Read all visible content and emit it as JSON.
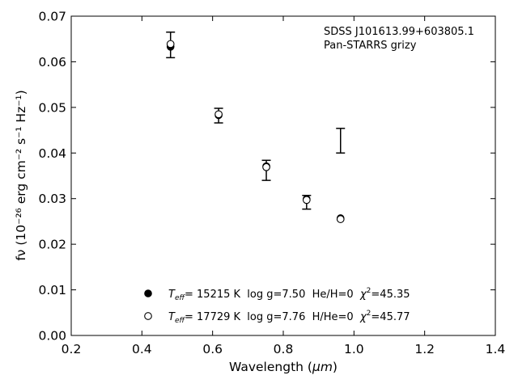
{
  "chart_data": {
    "type": "scatter",
    "xlabel_prefix": "Wavelength (",
    "xlabel_unit": "μm",
    "xlabel_suffix": ")",
    "ylabel_text": "fν (10⁻²⁶ erg cm⁻² s⁻¹ Hz⁻¹)",
    "xlim": [
      0.2,
      1.4
    ],
    "ylim": [
      0.0,
      0.07
    ],
    "xticks": [
      0.2,
      0.4,
      0.6,
      0.8,
      1.0,
      1.2,
      1.4
    ],
    "xtick_labels": [
      "0.2",
      "0.4",
      "0.6",
      "0.8",
      "1.0",
      "1.2",
      "1.4"
    ],
    "yticks": [
      0.0,
      0.01,
      0.02,
      0.03,
      0.04,
      0.05,
      0.06,
      0.07
    ],
    "ytick_labels": [
      "0.00",
      "0.01",
      "0.02",
      "0.03",
      "0.04",
      "0.05",
      "0.06",
      "0.07"
    ],
    "grid": false,
    "annotations": [
      "SDSS J101613.99+603805.1",
      "Pan-STARRS grizy"
    ],
    "observed": {
      "name": "Pan-STARRS grizy",
      "x": [
        0.481,
        0.617,
        0.752,
        0.866,
        0.962
      ],
      "y": [
        0.0637,
        0.0482,
        0.0362,
        0.0292,
        0.0427
      ],
      "yerr": [
        0.0028,
        0.0016,
        0.0022,
        0.0015,
        0.0027
      ]
    },
    "series": [
      {
        "name": "T_eff= 15215 K  log g=7.50  He/H=0  χ²=45.35",
        "marker": "filled-circle",
        "x": [
          0.481,
          0.617,
          0.752,
          0.866,
          0.962
        ],
        "y": [
          0.0633,
          0.0483,
          0.0371,
          0.0299,
          0.0257
        ]
      },
      {
        "name": "T_eff= 17729 K  log g=7.76  H/He=0  χ²=45.77",
        "marker": "open-circle",
        "x": [
          0.481,
          0.617,
          0.752,
          0.866,
          0.962
        ],
        "y": [
          0.0639,
          0.0485,
          0.0369,
          0.0297,
          0.0255
        ]
      }
    ],
    "legend": {
      "placement": "lower-center",
      "entries": [
        {
          "sym": "T",
          "sub": "eff",
          "text": "= 15215 K  log g=7.50  He/H=0  ",
          "chi": "χ",
          "sup": "2",
          "tail": "=45.35"
        },
        {
          "sym": "T",
          "sub": "eff",
          "text": "= 17729 K  log g=7.76  H/He=0  ",
          "chi": "χ",
          "sup": "2",
          "tail": "=45.77"
        }
      ]
    }
  }
}
